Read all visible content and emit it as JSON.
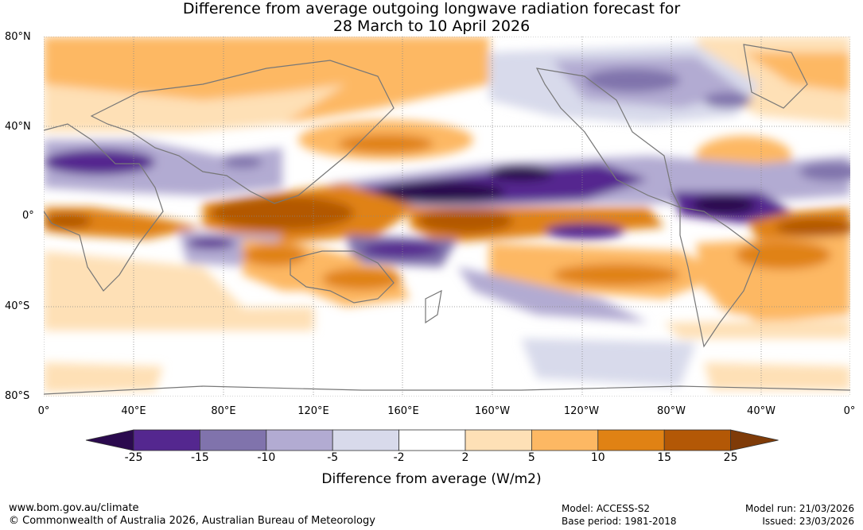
{
  "title": {
    "line1": "Difference from average outgoing longwave radiation forecast for",
    "line2": "28 March to 10 April 2026"
  },
  "map": {
    "lat_labels": [
      "80°N",
      "40°N",
      "0°",
      "40°S",
      "80°S"
    ],
    "lon_labels": [
      "0°",
      "40°E",
      "80°E",
      "120°E",
      "160°E",
      "160°W",
      "120°W",
      "80°W",
      "40°W",
      "0°"
    ]
  },
  "colorbar": {
    "ticks": [
      "-25",
      "-15",
      "-10",
      "-5",
      "-2",
      "2",
      "5",
      "10",
      "15",
      "25"
    ],
    "colors": [
      "#2b0a4e",
      "#54278f",
      "#8073ac",
      "#b2abd2",
      "#d8daeb",
      "#ffffff",
      "#fee0b6",
      "#fdb863",
      "#e08214",
      "#b35806",
      "#7f3b08"
    ],
    "label": "Difference from average (W/m2)"
  },
  "footer": {
    "website": "www.bom.gov.au/climate",
    "copyright": "© Commonwealth of Australia 2026, Australian Bureau of Meteorology",
    "model": "Model: ACCESS-S2",
    "base_period": "Base period: 1981-2018",
    "model_run": "Model run: 21/03/2026",
    "issued": "Issued: 23/03/2026"
  }
}
